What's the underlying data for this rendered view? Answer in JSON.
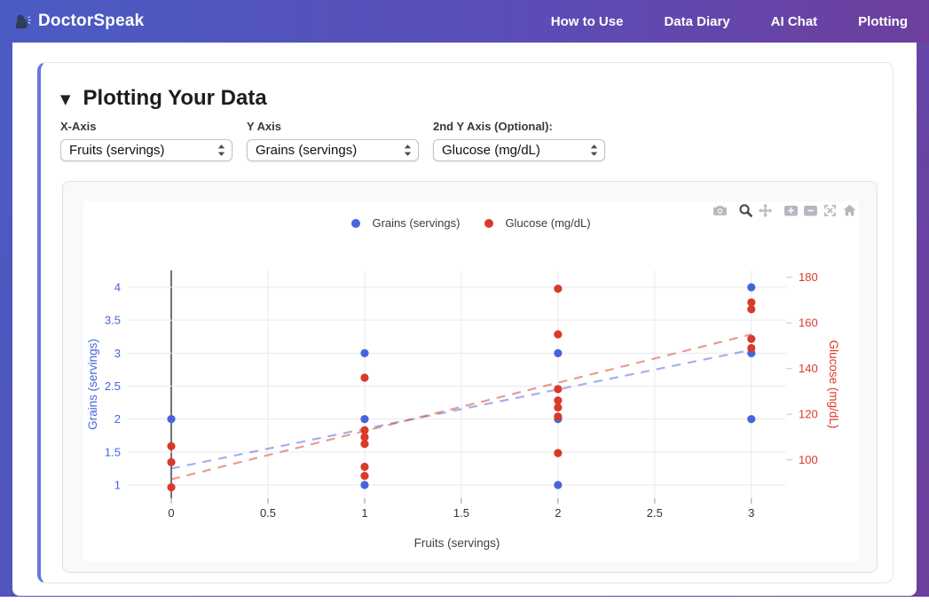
{
  "navbar": {
    "brand": "DoctorSpeak",
    "links": [
      "How to Use",
      "Data Diary",
      "AI Chat",
      "Plotting"
    ]
  },
  "panel": {
    "collapse_icon": "▼",
    "title": "Plotting Your Data",
    "controls": [
      {
        "label": "X-Axis",
        "value": "Fruits (servings)"
      },
      {
        "label": "Y Axis",
        "value": "Grains (servings)"
      },
      {
        "label": "2nd Y Axis (Optional):",
        "value": "Glucose (mg/dL)"
      }
    ]
  },
  "modebar_icons": [
    "camera",
    "zoom",
    "pan",
    "zoom-in",
    "zoom-out",
    "autoscale",
    "reset-home"
  ],
  "colors": {
    "accent_left_border": "#6677e0",
    "navbar_gradient_start": "#4a5cc4",
    "navbar_gradient_end": "#6d3f9d",
    "panel_bg": "#f8f9fa",
    "grid": "#e9e9ee",
    "zeroline": "#444444",
    "x_tick_text": "#333333",
    "axis_title": "#444444",
    "blue": "#4665dc",
    "red": "#d93a2a"
  },
  "chart_data": {
    "type": "scatter",
    "title": "",
    "xlabel": "Fruits (servings)",
    "ylabel_left": "Grains (servings)",
    "ylabel_right": "Glucose (mg/dL)",
    "legend_position": "top-center",
    "grid": true,
    "x_ticks": [
      0,
      0.5,
      1,
      1.5,
      2,
      2.5,
      3
    ],
    "y_left_ticks": [
      1,
      1.5,
      2,
      2.5,
      3,
      3.5,
      4
    ],
    "y_right_ticks": [
      100,
      120,
      140,
      160,
      180
    ],
    "x_range": [
      -0.225,
      3.18
    ],
    "y_left_range": [
      0.798,
      4.256
    ],
    "y_right_range": [
      83.2,
      183.0
    ],
    "series": [
      {
        "name": "Grains (servings)",
        "axis": "left",
        "color": "#4665dc",
        "points": [
          [
            0,
            2
          ],
          [
            1,
            1
          ],
          [
            1,
            2
          ],
          [
            1,
            3
          ],
          [
            2,
            1
          ],
          [
            2,
            2
          ],
          [
            2,
            3
          ],
          [
            3,
            2
          ],
          [
            3,
            3
          ],
          [
            3,
            4
          ]
        ]
      },
      {
        "name": "Glucose (mg/dL)",
        "axis": "right",
        "color": "#d93a2a",
        "points": [
          [
            0,
            88
          ],
          [
            0,
            99
          ],
          [
            0,
            106
          ],
          [
            1,
            93
          ],
          [
            1,
            97
          ],
          [
            1,
            107
          ],
          [
            1,
            110
          ],
          [
            1,
            113
          ],
          [
            1,
            136
          ],
          [
            2,
            103
          ],
          [
            2,
            119
          ],
          [
            2,
            123
          ],
          [
            2,
            126
          ],
          [
            2,
            131
          ],
          [
            2,
            155
          ],
          [
            2,
            175
          ],
          [
            3,
            149
          ],
          [
            3,
            153
          ],
          [
            3,
            166
          ],
          [
            3,
            169
          ]
        ]
      }
    ],
    "trendlines": [
      {
        "name": "Grains trend",
        "axis": "left",
        "color": "#4665dc",
        "style": "dashed",
        "start": [
          0,
          1.25
        ],
        "end": [
          3,
          3.05
        ]
      },
      {
        "name": "Glucose trend",
        "axis": "right",
        "color": "#d93a2a",
        "style": "dashed",
        "start": [
          0,
          91.5
        ],
        "end": [
          3,
          155
        ]
      }
    ]
  }
}
